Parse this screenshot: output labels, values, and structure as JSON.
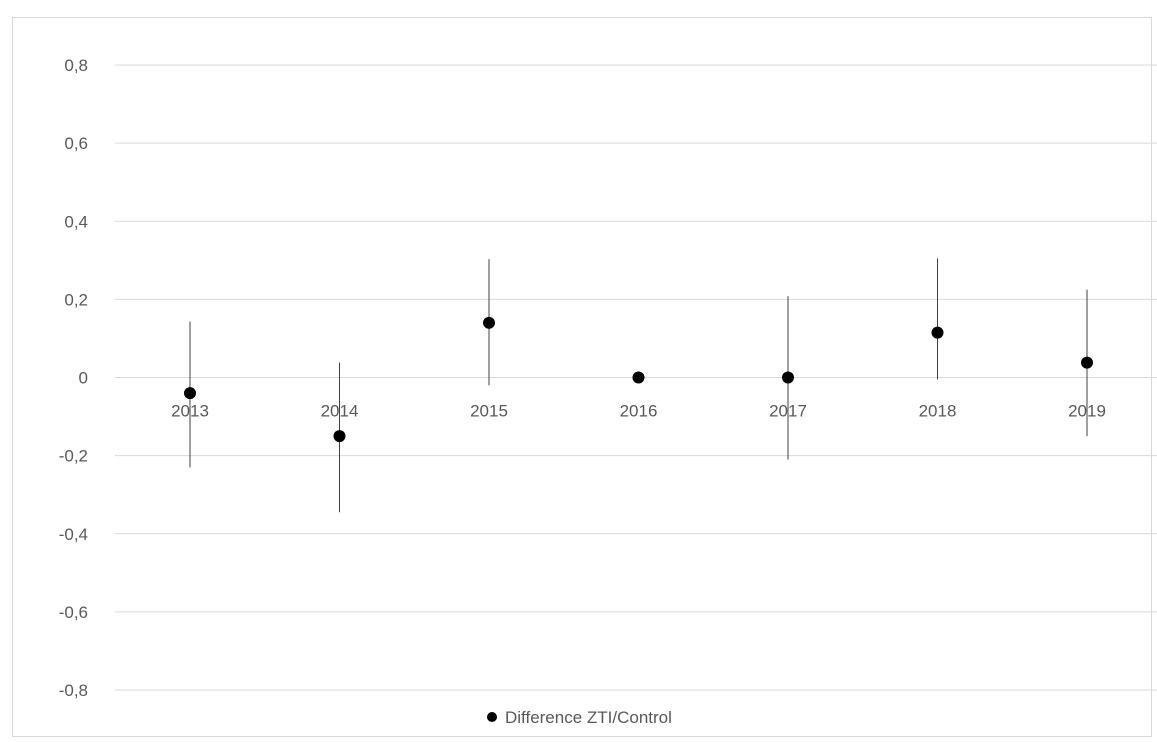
{
  "chart_data": {
    "type": "scatter",
    "title": "",
    "xlabel": "",
    "ylabel": "",
    "categories": [
      "2013",
      "2014",
      "2015",
      "2016",
      "2017",
      "2018",
      "2019"
    ],
    "series": [
      {
        "name": "Difference ZTI/Control",
        "color": "#000000",
        "values": [
          -0.04,
          -0.15,
          0.14,
          0.0,
          0.0,
          0.115,
          0.038
        ],
        "error_low": [
          -0.23,
          -0.345,
          -0.02,
          0.0,
          -0.21,
          -0.005,
          -0.15
        ],
        "error_high": [
          0.143,
          0.038,
          0.303,
          0.0,
          0.208,
          0.305,
          0.225
        ]
      }
    ],
    "ylim": [
      -0.8,
      0.8
    ],
    "yticks": [
      0.8,
      0.6,
      0.4,
      0.2,
      0,
      -0.2,
      -0.4,
      -0.6,
      -0.8
    ],
    "ytick_labels": [
      "0,8",
      "0,6",
      "0,4",
      "0,2",
      "0",
      "-0,2",
      "-0,4",
      "-0,6",
      "-0,8"
    ],
    "grid": true,
    "legend_position": "bottom",
    "gridline_color": "#d9d9d9",
    "errorbar_color": "#404040"
  }
}
